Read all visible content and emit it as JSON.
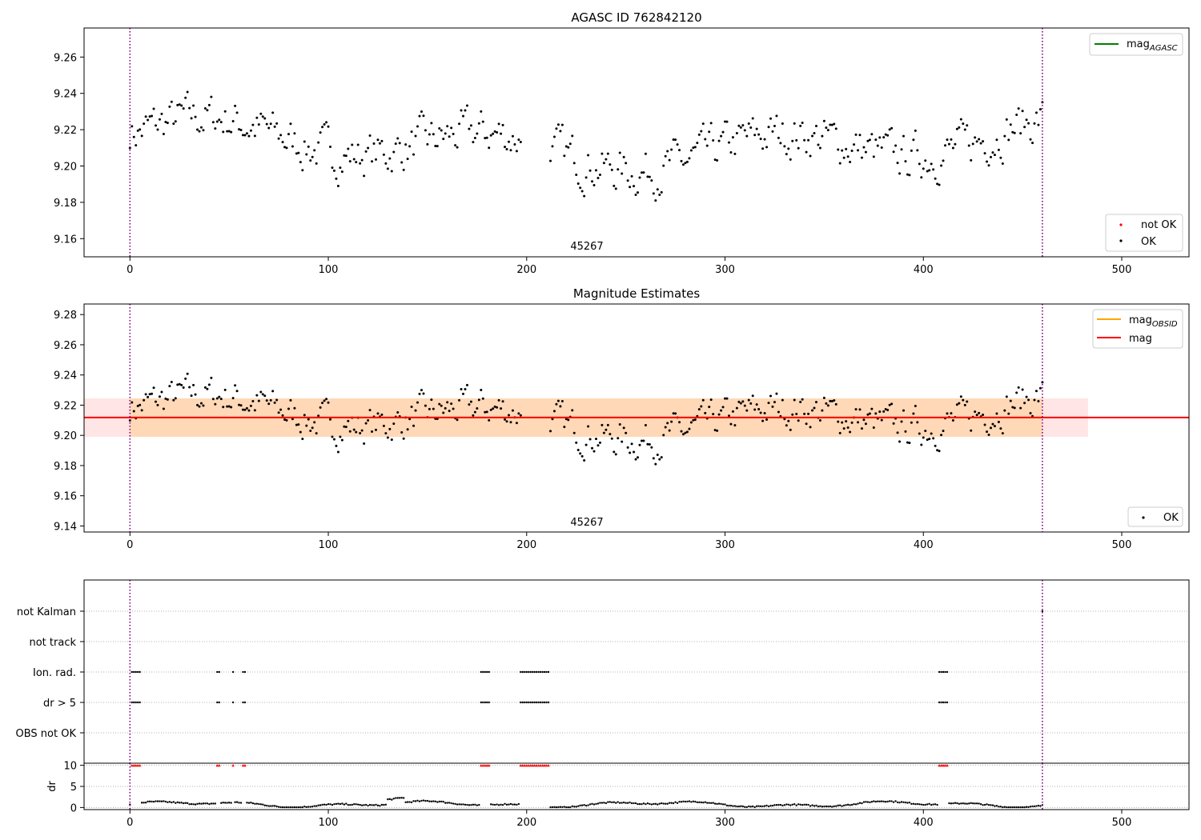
{
  "chart_data": [
    {
      "type": "scatter",
      "title": "AGASC ID 762842120",
      "xlabel": "",
      "ylabel": "",
      "xlim": [
        -23,
        532
      ],
      "ylim": [
        9.15,
        9.276
      ],
      "xticks": [
        "0",
        "100",
        "200",
        "300",
        "400",
        "500"
      ],
      "yticks": [
        "9.16",
        "9.18",
        "9.20",
        "9.22",
        "9.24",
        "9.26"
      ],
      "vlines": [
        0,
        460
      ],
      "annotation": "45267",
      "legend_lines": [
        {
          "label": "mag",
          "sub": "AGASC",
          "color": "#008000"
        }
      ],
      "legend_points": [
        {
          "label": "not OK",
          "color": "#ff0000"
        },
        {
          "label": "OK",
          "color": "#000000"
        }
      ],
      "series": [
        {
          "name": "OK",
          "color": "#000000",
          "x_range": [
            0,
            460
          ],
          "gap": [
            197,
            212
          ]
        }
      ],
      "not_ok_points": 0
    },
    {
      "type": "scatter",
      "title": "Magnitude Estimates",
      "xlabel": "",
      "ylabel": "",
      "xlim": [
        -23,
        532
      ],
      "ylim": [
        9.136,
        9.287
      ],
      "xticks": [
        "0",
        "100",
        "200",
        "300",
        "400",
        "500"
      ],
      "yticks": [
        "9.14",
        "9.16",
        "9.18",
        "9.20",
        "9.22",
        "9.24",
        "9.26",
        "9.28"
      ],
      "vlines": [
        0,
        460
      ],
      "annotation": "45267",
      "mag": 9.2118,
      "mag_band": [
        9.199,
        9.2245
      ],
      "mag_band_x": [
        -23,
        483
      ],
      "mag_obsid_band_x": [
        0,
        460
      ],
      "legend_lines": [
        {
          "label": "mag",
          "sub": "OBSID",
          "color": "#ffa500"
        },
        {
          "label": "mag",
          "sub": "",
          "color": "#ff0000"
        }
      ],
      "legend_points": [
        {
          "label": "OK",
          "color": "#000000"
        }
      ]
    },
    {
      "type": "scatter",
      "title": "",
      "xlabel": "",
      "ylabel": "",
      "xlim": [
        -23,
        532
      ],
      "xticks": [
        "0",
        "100",
        "200",
        "300",
        "400",
        "500"
      ],
      "vlines": [
        0,
        460
      ],
      "flag_rows": [
        "not Kalman",
        "not track",
        "Ion. rad.",
        "dr > 5",
        "OBS not OK"
      ],
      "flag_segments": [
        {
          "row": "Ion. rad.",
          "ranges": [
            [
              1,
              5
            ],
            [
              44,
              45
            ],
            [
              52,
              52
            ],
            [
              57,
              58
            ],
            [
              177,
              181
            ],
            [
              197,
              211
            ],
            [
              408,
              412
            ]
          ]
        },
        {
          "row": "dr > 5",
          "ranges": [
            [
              1,
              5
            ],
            [
              44,
              45
            ],
            [
              52,
              52
            ],
            [
              57,
              58
            ],
            [
              177,
              181
            ],
            [
              197,
              211
            ],
            [
              408,
              412
            ]
          ]
        },
        {
          "row": "not Kalman",
          "ranges": [
            [
              460,
              460
            ]
          ]
        }
      ]
    },
    {
      "type": "scatter",
      "title": "",
      "xlabel": "",
      "ylabel": "dr",
      "xlim": [
        -23,
        532
      ],
      "ylim": [
        -0.5,
        10.5
      ],
      "xticks": [
        "0",
        "100",
        "200",
        "300",
        "400",
        "500"
      ],
      "yticks": [
        "0",
        "5",
        "10"
      ],
      "clip_value": 10,
      "vlines": [
        0,
        460
      ]
    }
  ]
}
